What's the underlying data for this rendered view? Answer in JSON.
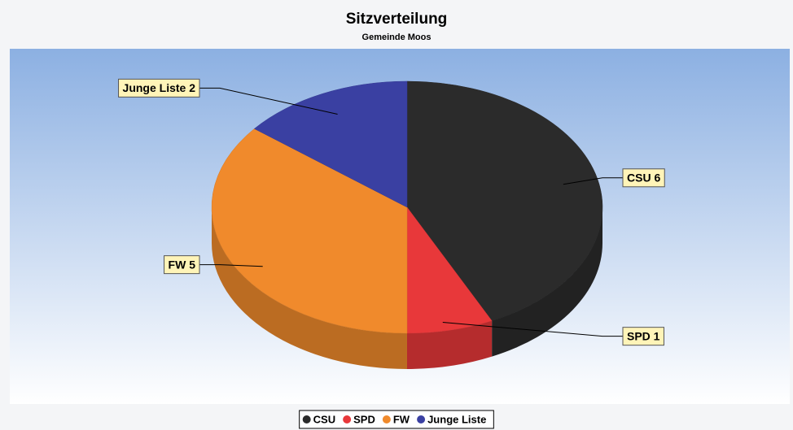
{
  "chart_data": {
    "type": "pie",
    "title": "Sitzverteilung",
    "subtitle": "Gemeinde Moos",
    "categories": [
      "CSU",
      "SPD",
      "FW",
      "Junge Liste"
    ],
    "values": [
      6,
      1,
      5,
      2
    ],
    "value_labels": [
      "CSU 6",
      "SPD 1",
      "FW 5",
      "Junge Liste 2"
    ],
    "colors": [
      "#2b2b2b",
      "#e8383a",
      "#f08a2c",
      "#3a40a2"
    ]
  }
}
